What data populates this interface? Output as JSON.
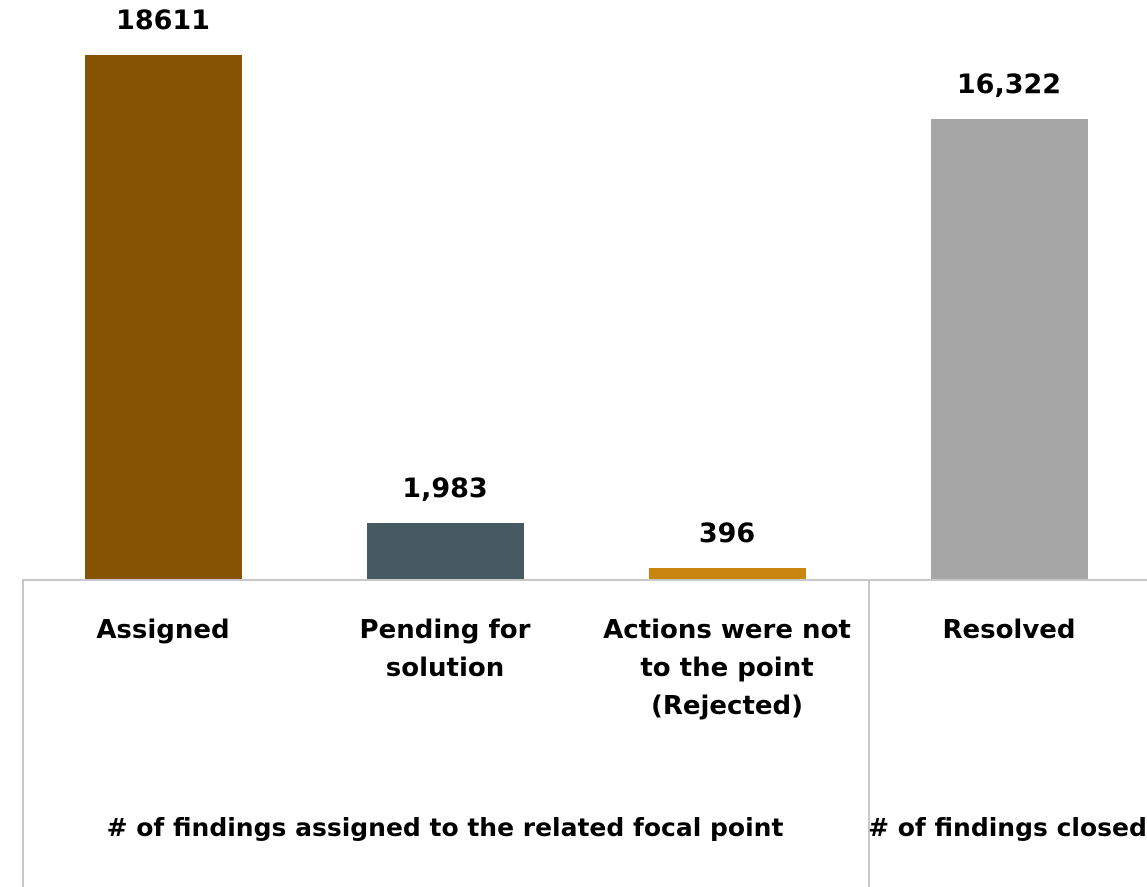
{
  "chart_data": {
    "type": "bar",
    "categories": [
      "Assigned",
      "Pending for solution",
      "Actions were not to the point (Rejected)",
      "Resolved"
    ],
    "values": [
      18611,
      1983,
      396,
      16322
    ],
    "value_labels": [
      "18611",
      "1,983",
      "396",
      "16,322"
    ],
    "colors": [
      "#845404",
      "#465a62",
      "#c8860f",
      "#a6a6a6"
    ],
    "groups": [
      {
        "label": "# of findings assigned to the related focal point",
        "span": [
          0,
          2
        ]
      },
      {
        "label": "# of findings closed",
        "span": [
          3,
          3
        ]
      }
    ]
  }
}
